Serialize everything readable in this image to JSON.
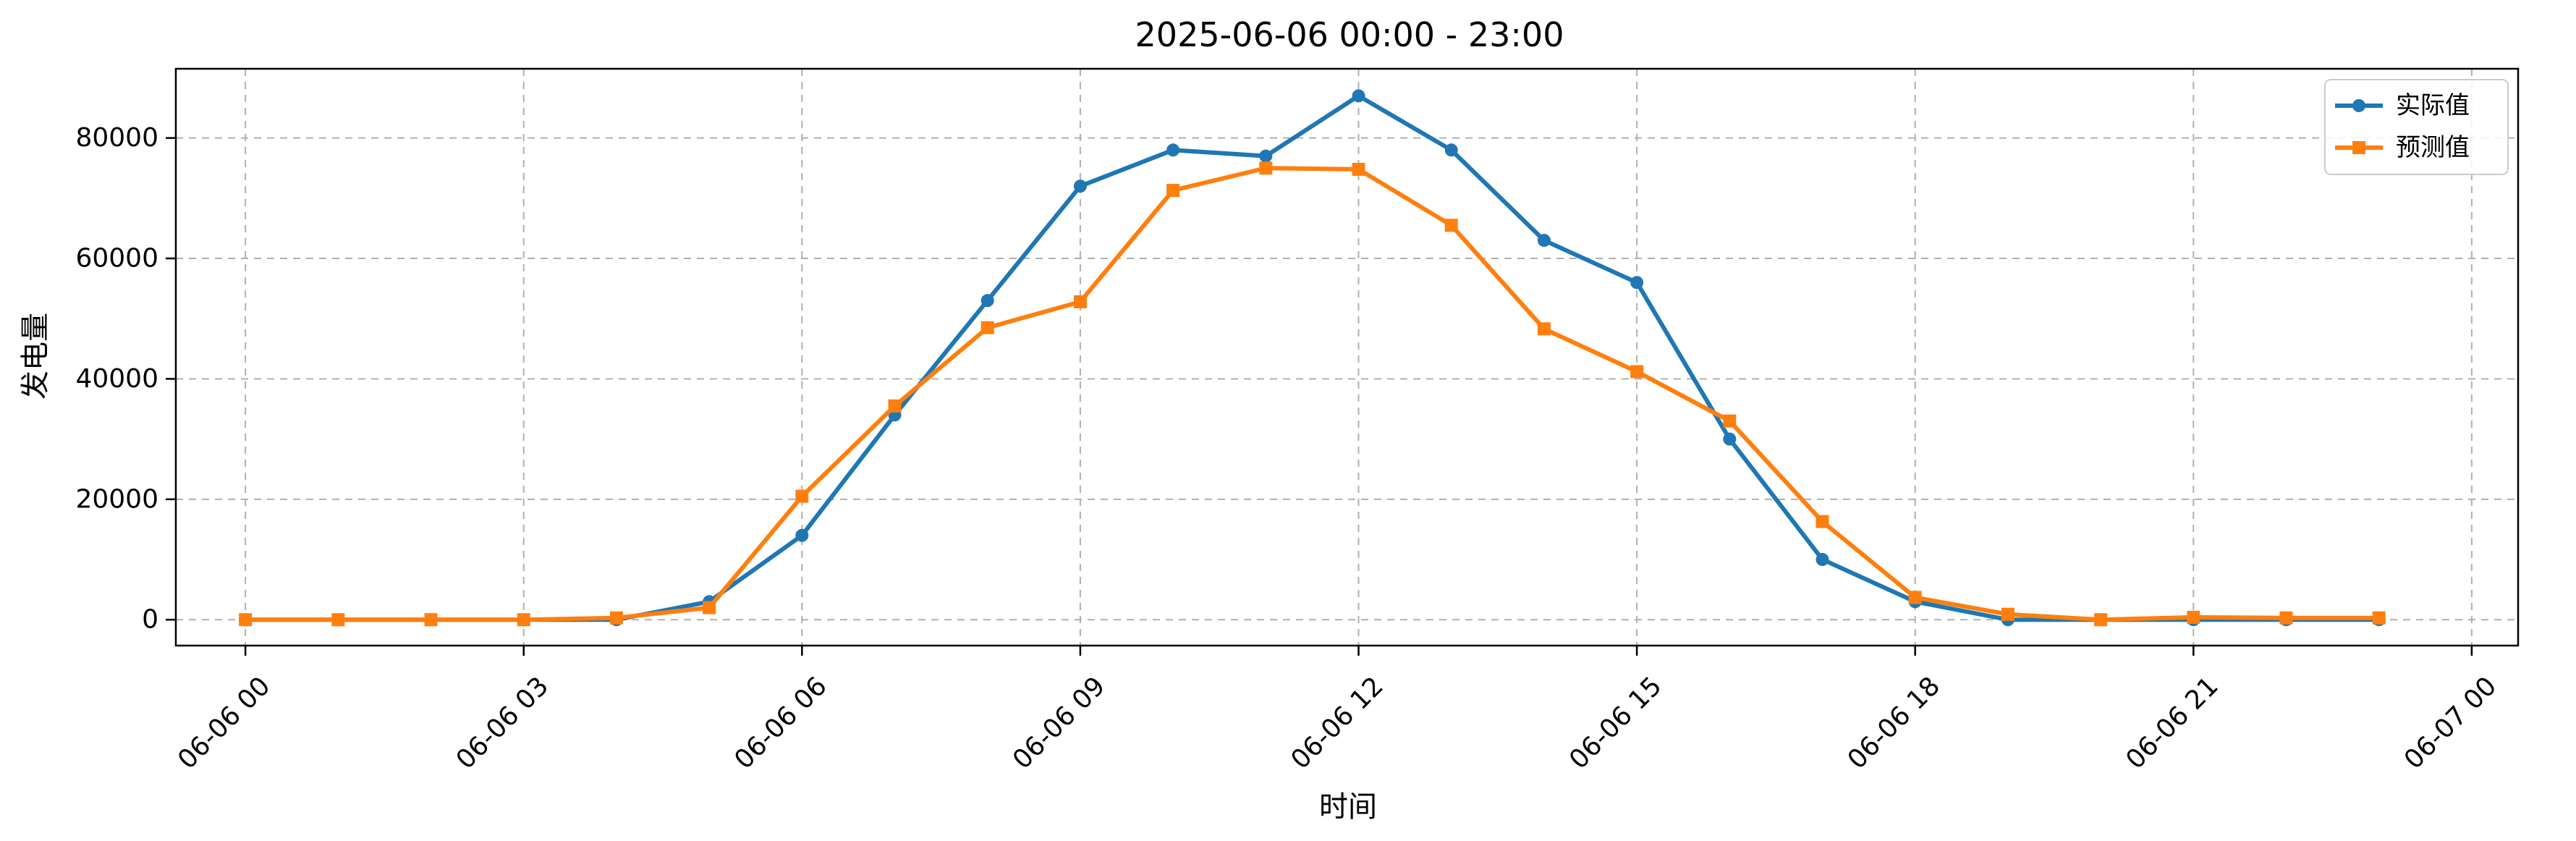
{
  "chart_data": {
    "type": "line",
    "title": "2025-06-06 00:00 - 23:00",
    "xlabel": "时间",
    "ylabel": "发电量",
    "x_unit": "hour",
    "x_range": [
      -0.75,
      24.5
    ],
    "y_range": [
      -4300,
      91500
    ],
    "x_ticks": [
      {
        "value": 0,
        "label": "06-06 00"
      },
      {
        "value": 3,
        "label": "06-06 03"
      },
      {
        "value": 6,
        "label": "06-06 06"
      },
      {
        "value": 9,
        "label": "06-06 09"
      },
      {
        "value": 12,
        "label": "06-06 12"
      },
      {
        "value": 15,
        "label": "06-06 15"
      },
      {
        "value": 18,
        "label": "06-06 18"
      },
      {
        "value": 21,
        "label": "06-06 21"
      },
      {
        "value": 24,
        "label": "06-07 00"
      }
    ],
    "y_ticks": [
      {
        "value": 0,
        "label": "0"
      },
      {
        "value": 20000,
        "label": "20000"
      },
      {
        "value": 40000,
        "label": "40000"
      },
      {
        "value": 60000,
        "label": "60000"
      },
      {
        "value": 80000,
        "label": "80000"
      }
    ],
    "grid": true,
    "legend_position": "top-right",
    "x": [
      0,
      1,
      2,
      3,
      4,
      5,
      6,
      7,
      8,
      9,
      10,
      11,
      12,
      13,
      14,
      15,
      16,
      17,
      18,
      19,
      20,
      21,
      22,
      23
    ],
    "series": [
      {
        "name": "实际值",
        "color": "#1f77b4",
        "marker": "circle",
        "values": [
          0,
          0,
          0,
          0,
          0,
          3000,
          14000,
          34000,
          53000,
          72000,
          78000,
          77000,
          87000,
          78000,
          63000,
          56000,
          30000,
          10000,
          3000,
          0,
          0,
          0,
          0,
          0
        ]
      },
      {
        "name": "预测值",
        "color": "#ff7f0e",
        "marker": "square",
        "values": [
          0,
          0,
          0,
          0,
          300,
          2000,
          20500,
          35500,
          48500,
          52800,
          71300,
          75000,
          74800,
          65500,
          48300,
          41200,
          33000,
          16300,
          3700,
          900,
          0,
          400,
          300,
          300
        ]
      }
    ]
  }
}
